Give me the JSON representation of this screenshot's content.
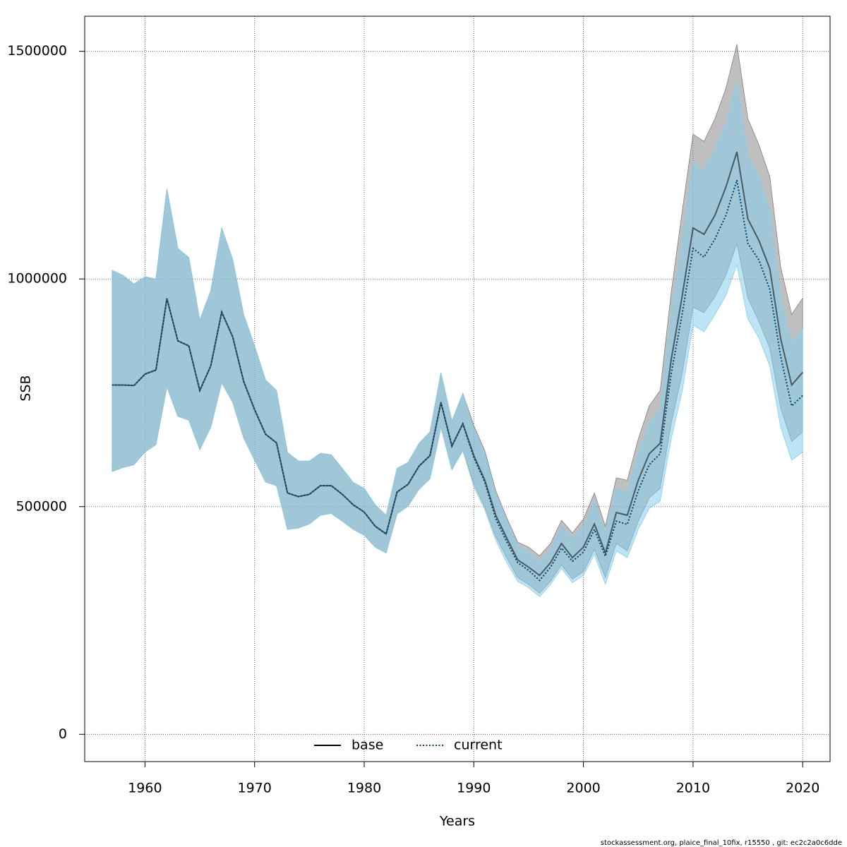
{
  "chart_data": {
    "type": "line",
    "x_label": "Years",
    "y_label": "SSB",
    "footnote": "stockassessment.org, plaice_final_10fix, r15550 , git: ec2c2a0c6dde",
    "x": [
      1957,
      1958,
      1959,
      1960,
      1961,
      1962,
      1963,
      1964,
      1965,
      1966,
      1967,
      1968,
      1969,
      1970,
      1971,
      1972,
      1973,
      1974,
      1975,
      1976,
      1977,
      1978,
      1979,
      1980,
      1981,
      1982,
      1983,
      1984,
      1985,
      1986,
      1987,
      1988,
      1989,
      1990,
      1991,
      1992,
      1993,
      1994,
      1995,
      1996,
      1997,
      1998,
      1999,
      2000,
      2001,
      2002,
      2003,
      2004,
      2005,
      2006,
      2007,
      2008,
      2009,
      2010,
      2011,
      2012,
      2013,
      2014,
      2015,
      2016,
      2017,
      2018,
      2019,
      2020
    ],
    "xlim": [
      1954.5,
      2022.5
    ],
    "xticks": [
      1960,
      1970,
      1980,
      1990,
      2000,
      2010,
      2020
    ],
    "ylim": [
      -60000,
      1577000
    ],
    "yticks": [
      0,
      500000,
      1000000,
      1500000
    ],
    "grid": true,
    "legend": "bottom",
    "series": [
      {
        "name": "base",
        "color": "#000000",
        "dash": "solid",
        "band_color": "#808080",
        "band_opacity": 0.5,
        "values": [
          767000,
          767000,
          766000,
          791000,
          800000,
          957000,
          864000,
          853000,
          755000,
          809000,
          927000,
          873000,
          775000,
          713000,
          659000,
          640000,
          530000,
          522000,
          527000,
          546000,
          546000,
          527000,
          504000,
          488000,
          457000,
          440000,
          532000,
          549000,
          589000,
          612000,
          729000,
          633000,
          682000,
          612000,
          558000,
          481000,
          431000,
          383000,
          367000,
          349000,
          377000,
          419000,
          388000,
          411000,
          462000,
          398000,
          487000,
          481000,
          558000,
          616000,
          639000,
          822000,
          961000,
          1112000,
          1098000,
          1140000,
          1202000,
          1279000,
          1132000,
          1085000,
          1023000,
          868000,
          767000,
          795000
        ],
        "upper": [
          1019000,
          1008000,
          989000,
          1005000,
          1000000,
          1198000,
          1067000,
          1047000,
          910000,
          974000,
          1112000,
          1043000,
          922000,
          853000,
          778000,
          755000,
          619000,
          600000,
          600000,
          617000,
          614000,
          584000,
          553000,
          540000,
          504000,
          481000,
          584000,
          597000,
          639000,
          664000,
          794000,
          688000,
          749000,
          678000,
          623000,
          535000,
          476000,
          422000,
          411000,
          392000,
          419000,
          470000,
          442000,
          473000,
          530000,
          457000,
          563000,
          558000,
          648000,
          721000,
          755000,
          969000,
          1147000,
          1318000,
          1302000,
          1352000,
          1419000,
          1515000,
          1352000,
          1295000,
          1225000,
          1026000,
          922000,
          958000
        ],
        "lower": [
          577000,
          586000,
          592000,
          620000,
          636000,
          763000,
          698000,
          690000,
          625000,
          674000,
          772000,
          729000,
          651000,
          602000,
          554000,
          546000,
          450000,
          453000,
          462000,
          481000,
          485000,
          468000,
          450000,
          437000,
          411000,
          398000,
          484000,
          501000,
          538000,
          561000,
          674000,
          581000,
          623000,
          550000,
          499000,
          434000,
          388000,
          344000,
          329000,
          310000,
          336000,
          372000,
          341000,
          357000,
          406000,
          344000,
          419000,
          403000,
          468000,
          519000,
          540000,
          682000,
          791000,
          938000,
          926000,
          961000,
          1008000,
          1078000,
          958000,
          907000,
          848000,
          716000,
          643000,
          664000
        ]
      },
      {
        "name": "current",
        "color": "#00406e",
        "dash": "dotted",
        "band_color": "#87ceeb",
        "band_opacity": 0.55,
        "values": [
          767000,
          767000,
          766000,
          791000,
          800000,
          957000,
          864000,
          853000,
          755000,
          809000,
          927000,
          873000,
          775000,
          713000,
          659000,
          640000,
          530000,
          522000,
          527000,
          546000,
          546000,
          527000,
          504000,
          488000,
          457000,
          440000,
          532000,
          549000,
          589000,
          612000,
          729000,
          633000,
          682000,
          608000,
          554000,
          473000,
          423000,
          377000,
          360000,
          338000,
          367000,
          409000,
          380000,
          400000,
          450000,
          391000,
          468000,
          461000,
          535000,
          592000,
          616000,
          791000,
          922000,
          1067000,
          1048000,
          1088000,
          1140000,
          1217000,
          1078000,
          1042000,
          977000,
          829000,
          721000,
          744000
        ],
        "upper": [
          1019000,
          1008000,
          989000,
          1005000,
          1000000,
          1198000,
          1067000,
          1047000,
          910000,
          974000,
          1112000,
          1043000,
          922000,
          853000,
          778000,
          755000,
          619000,
          600000,
          600000,
          617000,
          614000,
          584000,
          553000,
          540000,
          504000,
          481000,
          584000,
          597000,
          639000,
          664000,
          794000,
          688000,
          749000,
          671000,
          615000,
          527000,
          468000,
          414000,
          400000,
          380000,
          406000,
          457000,
          429000,
          457000,
          512000,
          442000,
          540000,
          532000,
          617000,
          685000,
          716000,
          922000,
          1085000,
          1256000,
          1237000,
          1287000,
          1341000,
          1434000,
          1271000,
          1228000,
          1150000,
          953000,
          860000,
          891000
        ],
        "lower": [
          577000,
          586000,
          592000,
          620000,
          636000,
          763000,
          698000,
          690000,
          625000,
          674000,
          772000,
          729000,
          651000,
          602000,
          554000,
          546000,
          450000,
          453000,
          462000,
          481000,
          485000,
          468000,
          450000,
          437000,
          411000,
          398000,
          484000,
          501000,
          538000,
          561000,
          674000,
          581000,
          623000,
          543000,
          493000,
          426000,
          377000,
          336000,
          322000,
          302000,
          329000,
          364000,
          333000,
          349000,
          395000,
          329000,
          403000,
          388000,
          450000,
          496000,
          512000,
          648000,
          752000,
          899000,
          884000,
          922000,
          964000,
          1031000,
          912000,
          871000,
          809000,
          674000,
          602000,
          620000
        ]
      }
    ]
  }
}
